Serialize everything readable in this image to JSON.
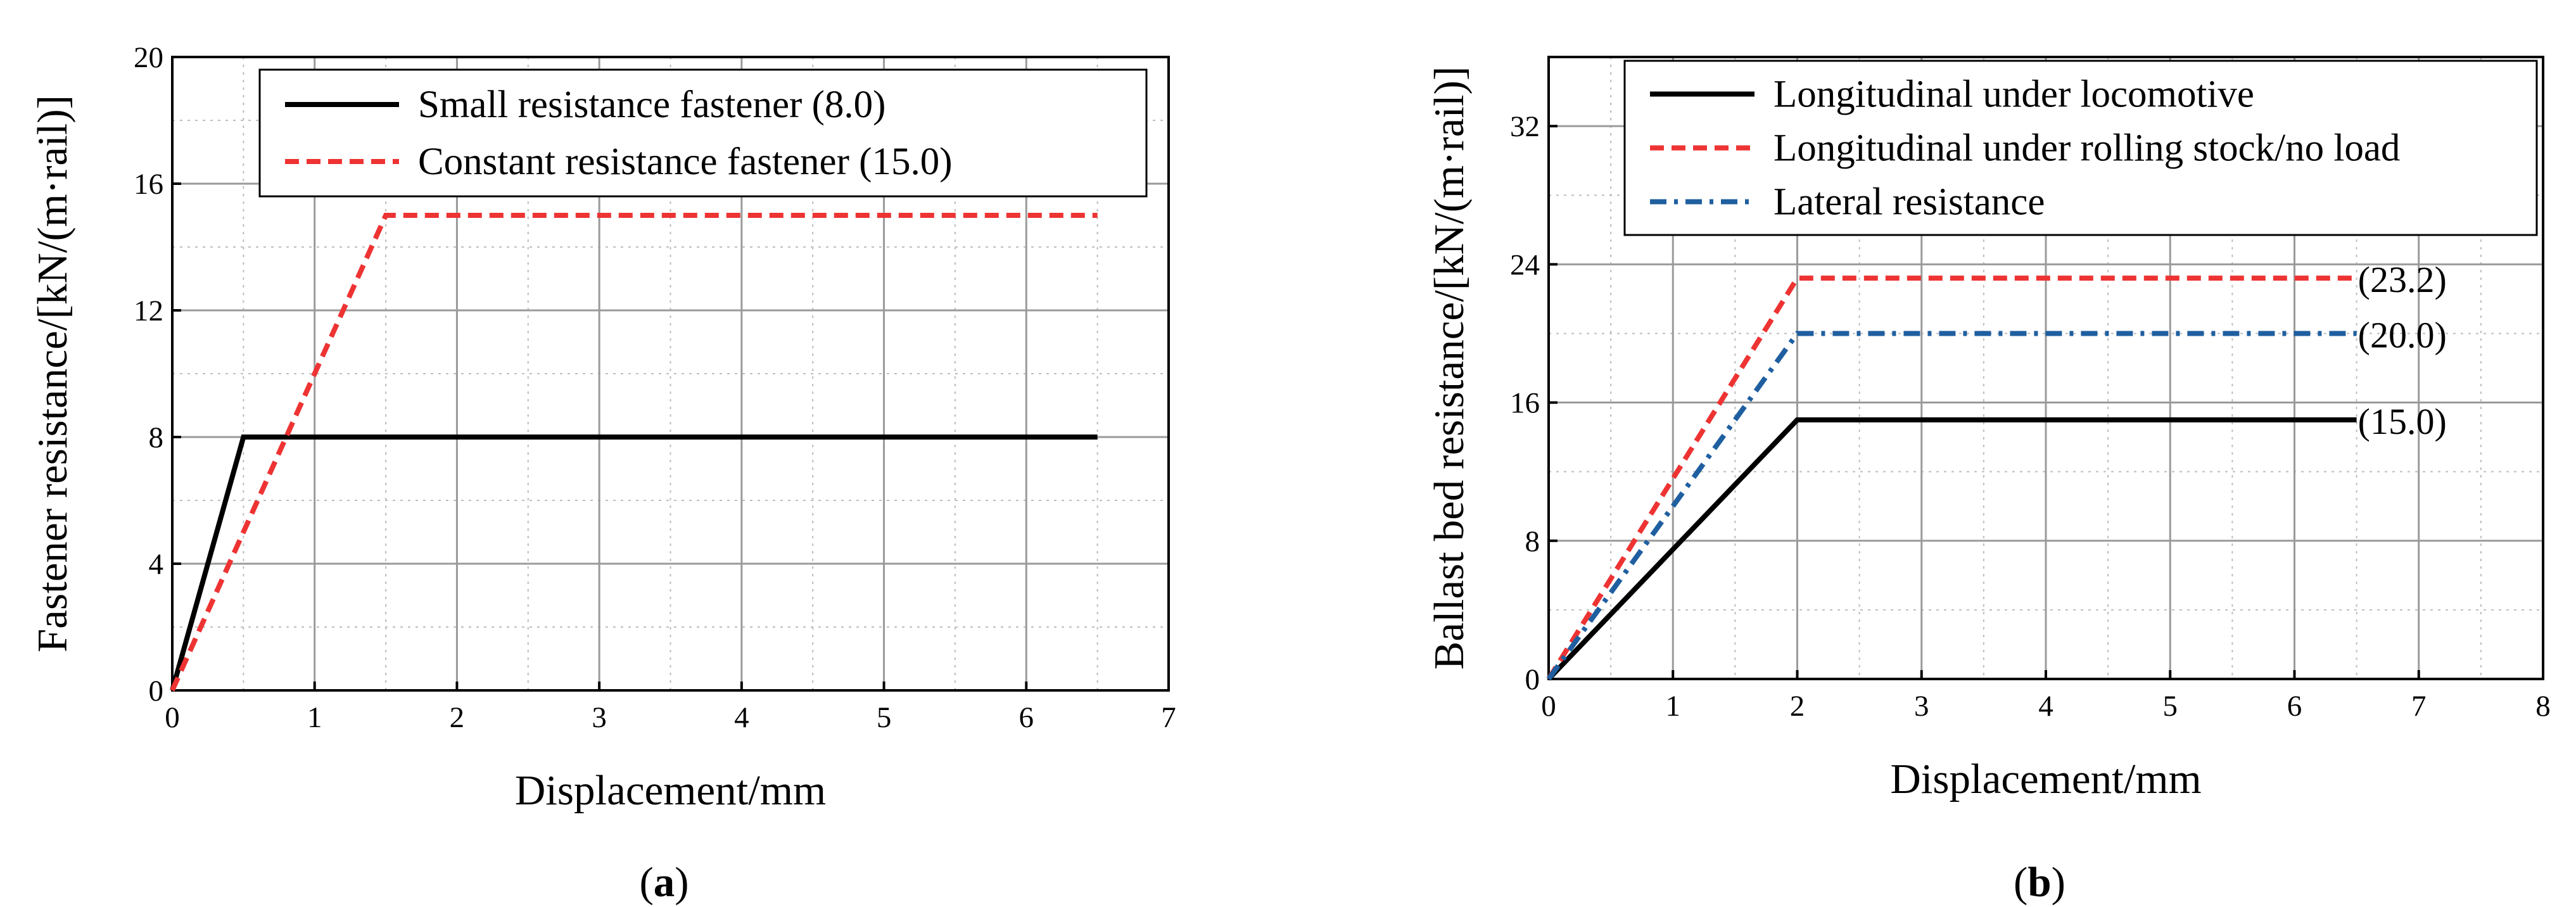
{
  "chart_data": [
    {
      "id": "a",
      "type": "line",
      "caption_open": "(",
      "caption_letter": "a",
      "caption_close": ")",
      "xlabel": "Displacement/mm",
      "ylabel": "Fastener resistance/[kN/(m·rail)]",
      "xlim": [
        0,
        7
      ],
      "ylim": [
        0,
        20
      ],
      "xticks": [
        0,
        1,
        2,
        3,
        4,
        5,
        6,
        7
      ],
      "yticks": [
        0,
        4,
        8,
        12,
        16,
        20
      ],
      "grid": true,
      "legend_position": "top-right",
      "series": [
        {
          "name": "Small resistance fastener (8.0)",
          "color": "#000000",
          "dash": "solid",
          "x": [
            0,
            0.5,
            6.5
          ],
          "y": [
            0,
            8,
            8
          ]
        },
        {
          "name": "Constant resistance fastener (15.0)",
          "color": "#ee3333",
          "dash": "dash",
          "x": [
            0,
            1.5,
            6.5
          ],
          "y": [
            0,
            15,
            15
          ]
        }
      ],
      "annotations": []
    },
    {
      "id": "b",
      "type": "line",
      "caption_open": "(",
      "caption_letter": "b",
      "caption_close": ")",
      "xlabel": "Displacement/mm",
      "ylabel": "Ballast bed resistance/[kN/(m·rail)]",
      "xlim": [
        0,
        8
      ],
      "ylim": [
        0,
        36
      ],
      "xticks": [
        0,
        1,
        2,
        3,
        4,
        5,
        6,
        7,
        8
      ],
      "yticks": [
        0,
        8,
        16,
        24,
        32
      ],
      "grid": true,
      "legend_position": "top-left",
      "series": [
        {
          "name": "Longitudinal under locomotive",
          "color": "#000000",
          "dash": "solid",
          "x": [
            0,
            2,
            6.5
          ],
          "y": [
            0,
            15,
            15
          ]
        },
        {
          "name": "Longitudinal under rolling stock/no load",
          "color": "#ee3333",
          "dash": "dash",
          "x": [
            0,
            2,
            6.5
          ],
          "y": [
            0,
            23.2,
            23.2
          ]
        },
        {
          "name": "Lateral resistance",
          "color": "#1f5fa0",
          "dash": "dashdot",
          "x": [
            0,
            2,
            6.5
          ],
          "y": [
            0,
            20,
            20
          ]
        }
      ],
      "annotations": [
        {
          "text": "(23.2)",
          "x": 6.5,
          "y": 23.2
        },
        {
          "text": "(20.0)",
          "x": 6.5,
          "y": 20.0
        },
        {
          "text": "(15.0)",
          "x": 6.5,
          "y": 15.0
        }
      ]
    }
  ]
}
